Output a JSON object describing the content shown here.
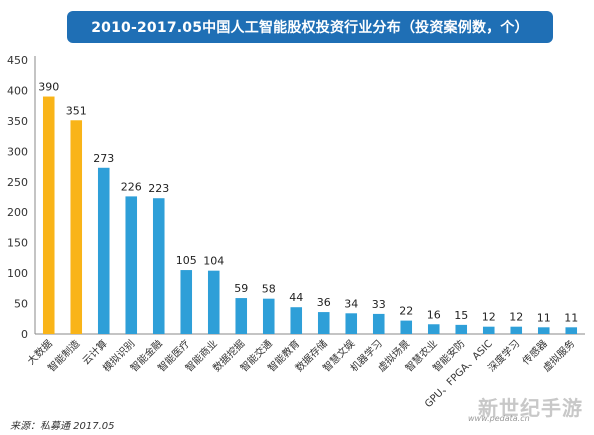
{
  "chart_data": {
    "type": "bar",
    "title": "2010-2017.05中国人工智能股权投资行业分布（投资案例数，个）",
    "categories": [
      "大数据",
      "智能制造",
      "云计算",
      "模拟识别",
      "智能金融",
      "智能医疗",
      "智能商业",
      "数据挖掘",
      "智能交通",
      "智能教育",
      "数据存储",
      "智慧文娱",
      "机器学习",
      "虚拟场景",
      "智慧农业",
      "智能安防",
      "GPU、FPGA、ASIC",
      "深度学习",
      "传感器",
      "虚拟服务"
    ],
    "values": [
      390,
      351,
      273,
      226,
      223,
      105,
      104,
      59,
      58,
      44,
      36,
      34,
      33,
      22,
      16,
      15,
      12,
      12,
      11,
      11
    ],
    "highlight_count": 2,
    "colors": {
      "highlight": "#f9b418",
      "default": "#2e9fd8"
    },
    "ylim": [
      0,
      450
    ],
    "yticks": [
      0,
      50,
      100,
      150,
      200,
      250,
      300,
      350,
      400,
      450
    ],
    "grid": false,
    "xlabel": "",
    "ylabel": ""
  },
  "footer": {
    "source": "来源：私募通 2017.05",
    "watermark_url": "www.pedata.cn",
    "watermark_logo": "新世纪手游"
  }
}
